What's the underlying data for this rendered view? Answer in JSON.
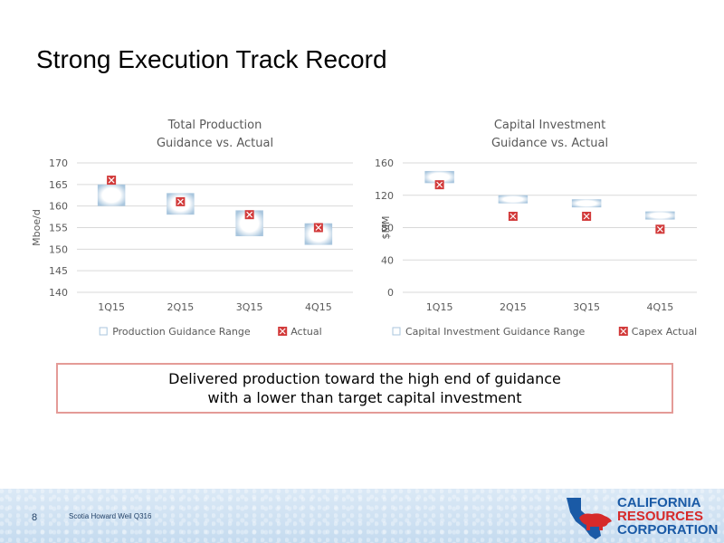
{
  "slide": {
    "title": "Strong Execution Track Record",
    "callout_line1": "Delivered production toward the high end of guidance",
    "callout_line2": "with a lower than target capital investment",
    "page_number": "8",
    "footer_text": "Scotia Howard Weil Q316",
    "logo_lines": [
      "CALIFORNIA",
      "RESOURCES",
      "CORPORATION"
    ]
  },
  "colors": {
    "range_edge": "#a9c6de",
    "range_center": "#ffffff",
    "marker_fill": "#d23a3a",
    "marker_x": "#ffffff",
    "grid": "#d9d9d9",
    "logo_blue": "#1a5aa6",
    "logo_red": "#d62a2a"
  },
  "chart_data": [
    {
      "type": "floating-range-with-markers",
      "title": "Total Production",
      "subtitle": "Guidance vs. Actual",
      "ylabel": "Mboe/d",
      "xlabel": "",
      "ylim": [
        140,
        170
      ],
      "yticks": [
        140,
        145,
        150,
        155,
        160,
        165,
        170
      ],
      "categories": [
        "1Q15",
        "2Q15",
        "3Q15",
        "4Q15"
      ],
      "series": [
        {
          "name": "Production Guidance Range",
          "kind": "range",
          "low": [
            160,
            158,
            153,
            151
          ],
          "high": [
            165,
            163,
            159,
            156
          ]
        },
        {
          "name": "Actual",
          "kind": "marker",
          "values": [
            166,
            161,
            158,
            155
          ]
        }
      ],
      "grid": true,
      "legend": "bottom"
    },
    {
      "type": "floating-range-with-markers",
      "title": "Capital Investment",
      "subtitle": "Guidance vs. Actual",
      "ylabel": "$MM",
      "xlabel": "",
      "ylim": [
        0,
        160
      ],
      "yticks": [
        0,
        40,
        80,
        120,
        160
      ],
      "categories": [
        "1Q15",
        "2Q15",
        "3Q15",
        "4Q15"
      ],
      "series": [
        {
          "name": "Capital Investment Guidance Range",
          "kind": "range",
          "low": [
            135,
            110,
            105,
            90
          ],
          "high": [
            150,
            120,
            115,
            100
          ]
        },
        {
          "name": "Capex Actual",
          "kind": "marker",
          "values": [
            133,
            94,
            94,
            78
          ]
        }
      ],
      "grid": true,
      "legend": "bottom"
    }
  ]
}
